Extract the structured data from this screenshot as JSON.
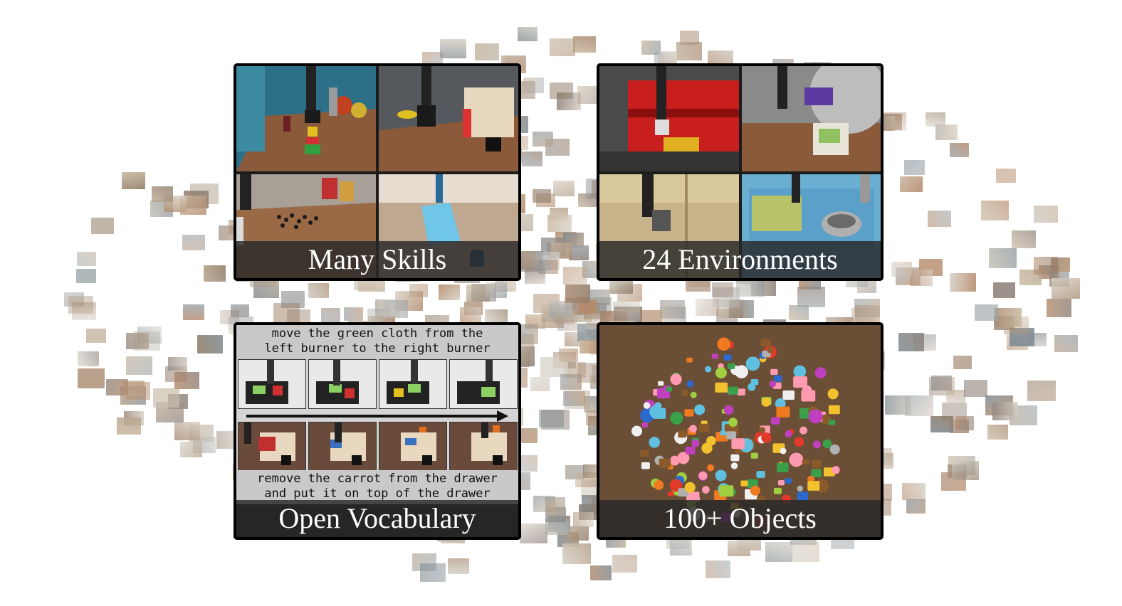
{
  "panels": {
    "skills": {
      "caption": "Many Skills"
    },
    "environments": {
      "caption": "24 Environments"
    },
    "vocabulary": {
      "caption": "Open Vocabulary",
      "instruction_top": [
        "move the green cloth from the",
        "left burner to the right burner"
      ],
      "instruction_bottom": [
        "remove the carrot from the drawer",
        "and put it on top of the drawer"
      ]
    },
    "objects": {
      "caption": "100+ Objects"
    }
  },
  "colors": {
    "border": "#000000",
    "caption_bar": "#2a2a2a",
    "instruction_bg": "#c9c9c9",
    "desk_wood": "#8a5a3a",
    "toolbox_red": "#c81e1e",
    "sink_blue": "#5aa0c8"
  }
}
